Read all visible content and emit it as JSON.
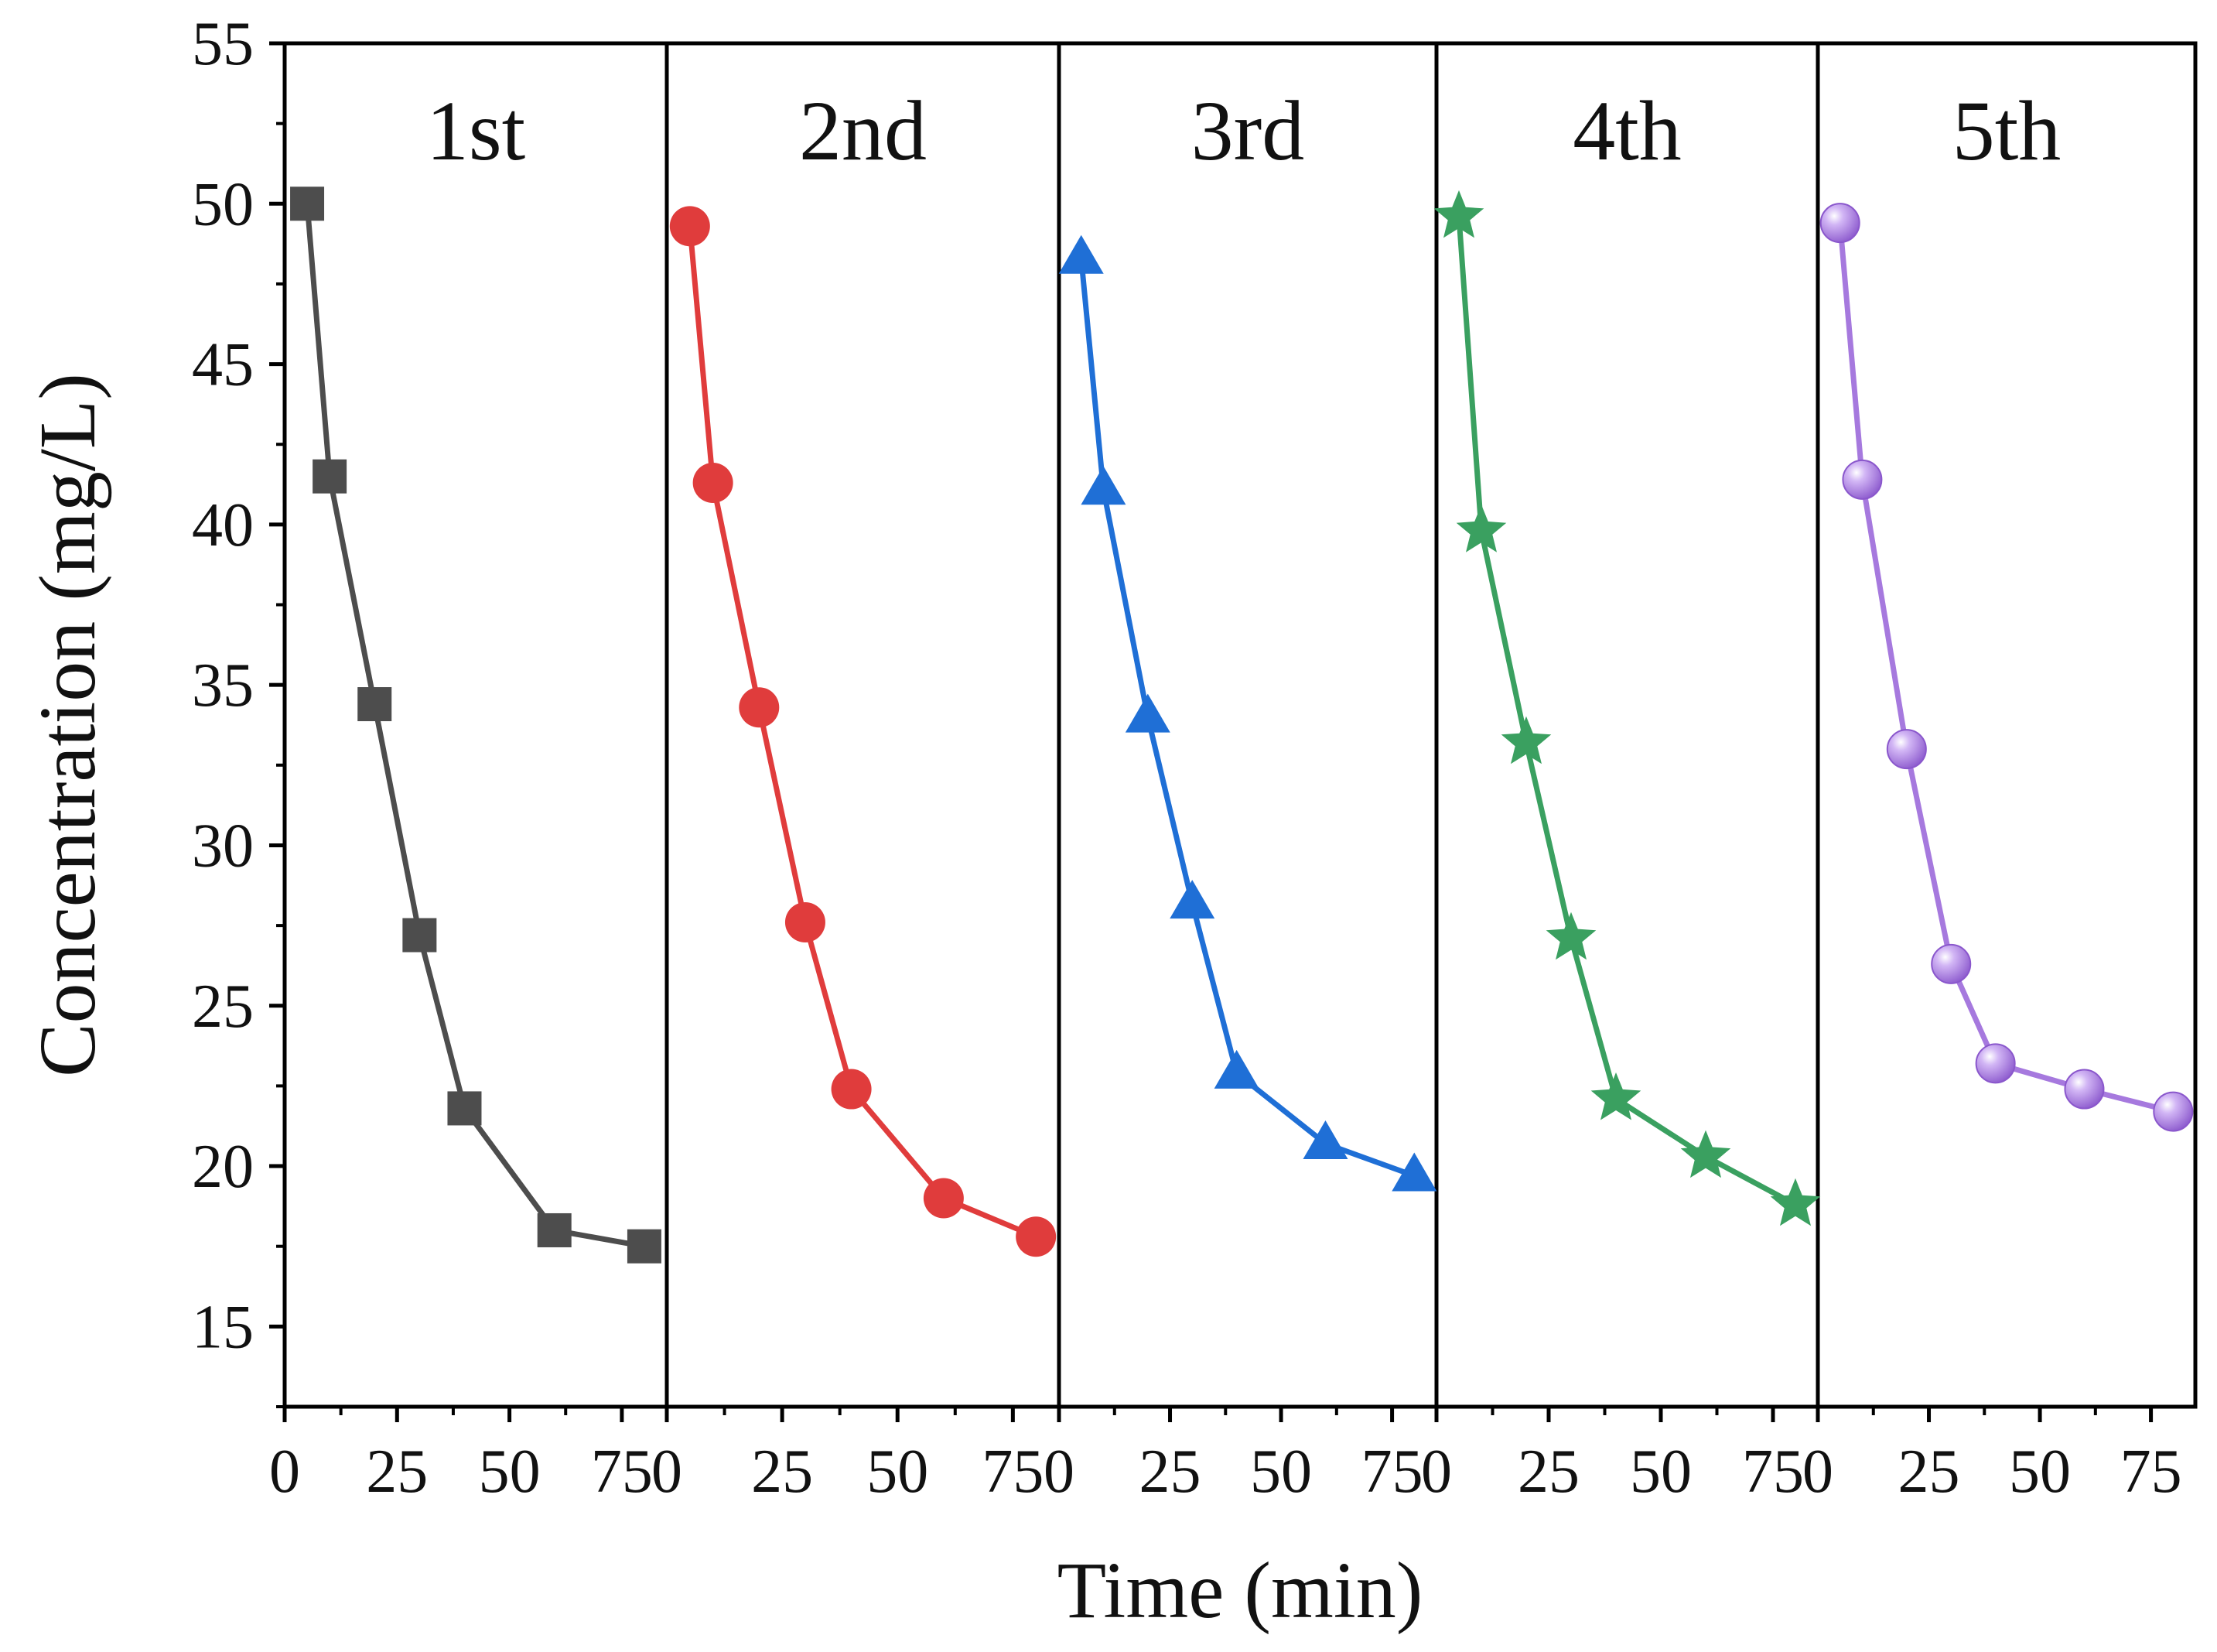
{
  "chart_data": {
    "type": "line",
    "xlabel": "Time (min)",
    "ylabel": "Concentration (mg/L)",
    "ylim": [
      12.5,
      55
    ],
    "yticks": [
      15,
      20,
      25,
      30,
      35,
      40,
      45,
      50,
      55
    ],
    "panel_xlim": [
      0,
      85
    ],
    "panel_xticks": [
      0,
      25,
      50,
      75
    ],
    "x": [
      5,
      10,
      20,
      30,
      40,
      60,
      80
    ],
    "series": [
      {
        "name": "1st",
        "marker": "square",
        "color": "#4d4d4d",
        "values": [
          50.0,
          41.5,
          34.4,
          27.2,
          21.8,
          18.0,
          17.5
        ]
      },
      {
        "name": "2nd",
        "marker": "circle",
        "color": "#e03c3c",
        "values": [
          49.3,
          41.3,
          34.3,
          27.6,
          22.4,
          19.0,
          17.8
        ]
      },
      {
        "name": "3rd",
        "marker": "triangle",
        "color": "#1f6fd6",
        "values": [
          48.3,
          41.1,
          34.0,
          28.2,
          22.9,
          20.7,
          19.7
        ]
      },
      {
        "name": "4th",
        "marker": "star",
        "color": "#3aa060",
        "values": [
          49.6,
          39.8,
          33.2,
          27.1,
          22.1,
          20.3,
          18.8
        ]
      },
      {
        "name": "5th",
        "marker": "sphere",
        "color": "#a679de",
        "values": [
          49.4,
          41.4,
          33.0,
          26.3,
          23.2,
          22.4,
          21.7
        ]
      }
    ]
  }
}
